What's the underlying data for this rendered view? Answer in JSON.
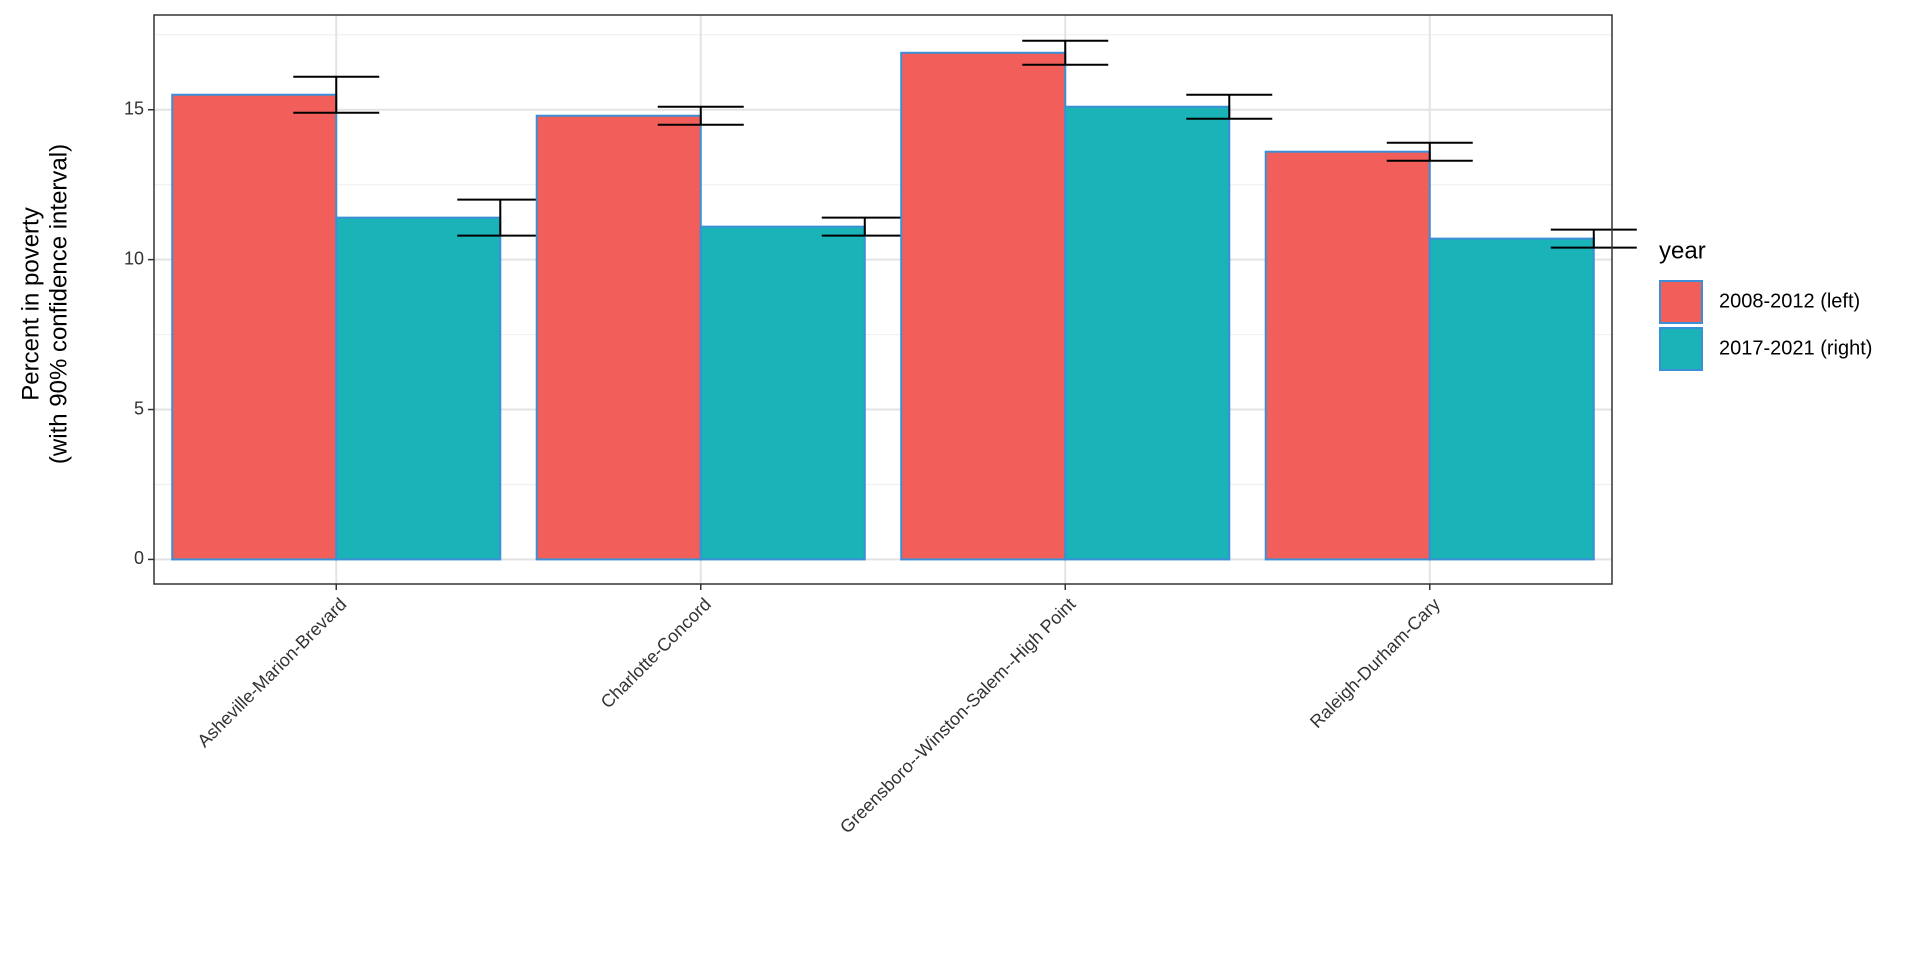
{
  "chart_data": {
    "type": "bar",
    "y_label": [
      "Percent in poverty",
      "(with 90% confidence interval)"
    ],
    "legend_title": "year",
    "categories": [
      "Asheville-Marion-Brevard",
      "Charlotte-Concord",
      "Greensboro--Winston-Salem--High Point",
      "Raleigh-Durham-Cary"
    ],
    "series": [
      {
        "name": "2008-2012 (left)",
        "color": "#f25f5b",
        "values": [
          15.5,
          14.8,
          16.9,
          13.6
        ],
        "errors": [
          0.6,
          0.3,
          0.4,
          0.3
        ]
      },
      {
        "name": "2017-2021 (right)",
        "color": "#19b3b8",
        "values": [
          11.4,
          11.1,
          15.1,
          10.7
        ],
        "errors": [
          0.6,
          0.3,
          0.4,
          0.3
        ]
      }
    ],
    "bar_outline": "#3b8fd6",
    "ylim": [
      -0.82,
      18.16
    ],
    "yticks": [
      0,
      5,
      10,
      15
    ],
    "y_minor_ticks": [
      2.5,
      7.5,
      12.5,
      17.5
    ],
    "grid": true,
    "legend": "right"
  }
}
